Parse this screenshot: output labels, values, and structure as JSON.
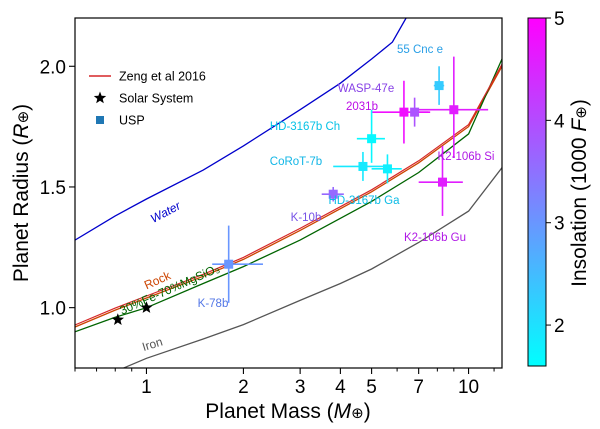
{
  "chart_data": {
    "type": "scatter",
    "xlabel": "Planet Mass (M⊕)",
    "ylabel": "Planet Radius (R⊕)",
    "x_scale": "log",
    "x_range": [
      0.6,
      12.7
    ],
    "y_range": [
      0.75,
      2.2
    ],
    "x_ticks": [
      {
        "value": 1,
        "label": "1"
      },
      {
        "value": 2,
        "label": "2"
      },
      {
        "value": 3,
        "label": "3"
      },
      {
        "value": 4,
        "label": "4"
      },
      {
        "value": 5,
        "label": "5"
      },
      {
        "value": 7,
        "label": "7"
      },
      {
        "value": 10,
        "label": "10"
      }
    ],
    "y_ticks": [
      {
        "value": 1.0,
        "label": "1.0"
      },
      {
        "value": 1.5,
        "label": "1.5"
      },
      {
        "value": 2.0,
        "label": "2.0"
      }
    ],
    "grid": false,
    "legend": {
      "placement": "top-left",
      "entries": [
        {
          "label": "Zeng et al 2016",
          "kind": "line",
          "color": "#d62728"
        },
        {
          "label": "Solar System",
          "kind": "star",
          "color": "#000000"
        },
        {
          "label": "USP",
          "kind": "square",
          "color": "#1f77b4"
        }
      ]
    },
    "colorbar": {
      "label": "Insolation (1000 F⊕)",
      "range": [
        1.6,
        5.0
      ],
      "ticks": [
        {
          "value": 2,
          "label": "2"
        },
        {
          "value": 3,
          "label": "3"
        },
        {
          "value": 4,
          "label": "4"
        },
        {
          "value": 5,
          "label": "5"
        }
      ],
      "colors": [
        "#00ffff",
        "#ff00ff"
      ]
    },
    "curves": [
      {
        "label": "Water",
        "color": "#0000cc",
        "points": [
          [
            0.6,
            1.28
          ],
          [
            0.8,
            1.38
          ],
          [
            1,
            1.45
          ],
          [
            1.5,
            1.57
          ],
          [
            2,
            1.67
          ],
          [
            3,
            1.82
          ],
          [
            4,
            1.93
          ],
          [
            5,
            2.03
          ],
          [
            5.8,
            2.1
          ],
          [
            6.4,
            2.2
          ]
        ]
      },
      {
        "label": "Rock",
        "color": "#cc4400",
        "points": [
          [
            0.6,
            0.92
          ],
          [
            0.8,
            0.99
          ],
          [
            1,
            1.04
          ],
          [
            1.5,
            1.13
          ],
          [
            2,
            1.2
          ],
          [
            3,
            1.32
          ],
          [
            4,
            1.41
          ],
          [
            5,
            1.48
          ],
          [
            7,
            1.6
          ],
          [
            10,
            1.75
          ],
          [
            12.7,
            2.0
          ]
        ]
      },
      {
        "label": "30%Fe-70%MgSiO₃",
        "color": "#006400",
        "points": [
          [
            0.6,
            0.9
          ],
          [
            0.8,
            0.96
          ],
          [
            1,
            1.0
          ],
          [
            1.5,
            1.1
          ],
          [
            2,
            1.17
          ],
          [
            3,
            1.28
          ],
          [
            4,
            1.37
          ],
          [
            5,
            1.44
          ],
          [
            7,
            1.56
          ],
          [
            10,
            1.72
          ],
          [
            12.7,
            2.03
          ]
        ]
      },
      {
        "label": "Iron",
        "color": "#555555",
        "points": [
          [
            0.85,
            0.75
          ],
          [
            1,
            0.79
          ],
          [
            1.5,
            0.87
          ],
          [
            2,
            0.93
          ],
          [
            3,
            1.03
          ],
          [
            4,
            1.1
          ],
          [
            5,
            1.16
          ],
          [
            7,
            1.27
          ],
          [
            10,
            1.4
          ],
          [
            12.7,
            1.58
          ]
        ]
      }
    ],
    "solar_system": [
      {
        "x": 0.815,
        "y": 0.95
      },
      {
        "x": 1.0,
        "y": 1.0
      }
    ],
    "planets": [
      {
        "label": "55 Cnc e",
        "x": 8.1,
        "y": 1.92,
        "xerr": [
          0.3,
          0.3
        ],
        "yerr": [
          0.08,
          0.08
        ],
        "insolation": 2.3
      },
      {
        "label": "WASP-47e",
        "x": 6.8,
        "y": 1.81,
        "xerr": [
          0.7,
          0.7
        ],
        "yerr": [
          0.06,
          0.06
        ],
        "insolation": 3.9
      },
      {
        "label": "2031b",
        "x": 6.3,
        "y": 1.81,
        "xerr": [
          1.3,
          1.3
        ],
        "yerr": [
          0.13,
          0.13
        ],
        "insolation": 4.8
      },
      {
        "label": "K2-106b Si",
        "x": 9.0,
        "y": 1.82,
        "xerr": [
          2.0,
          2.5
        ],
        "yerr": [
          0.2,
          0.22
        ],
        "insolation": 4.6
      },
      {
        "label": "HD-3167b Ch",
        "x": 5.0,
        "y": 1.7,
        "xerr": [
          0.5,
          0.5
        ],
        "yerr": [
          0.1,
          0.12
        ],
        "insolation": 1.7
      },
      {
        "label": "CoRoT-7b",
        "x": 4.7,
        "y": 1.585,
        "xerr": [
          0.9,
          0.9
        ],
        "yerr": [
          0.06,
          0.06
        ],
        "insolation": 1.9
      },
      {
        "label": "HD-3167b Ga",
        "x": 5.6,
        "y": 1.575,
        "xerr": [
          0.6,
          0.6
        ],
        "yerr": [
          0.06,
          0.06
        ],
        "insolation": 1.8
      },
      {
        "label": "K-10b",
        "x": 3.8,
        "y": 1.47,
        "xerr": [
          0.3,
          0.3
        ],
        "yerr": [
          0.03,
          0.03
        ],
        "insolation": 3.6
      },
      {
        "label": "K2-106b Gu",
        "x": 8.3,
        "y": 1.52,
        "xerr": [
          1.3,
          1.3
        ],
        "yerr": [
          0.14,
          0.15
        ],
        "insolation": 4.6
      },
      {
        "label": "K-78b",
        "x": 1.8,
        "y": 1.18,
        "xerr": [
          0.2,
          0.5
        ],
        "yerr": [
          0.16,
          0.16
        ],
        "insolation": 3.0
      }
    ]
  }
}
